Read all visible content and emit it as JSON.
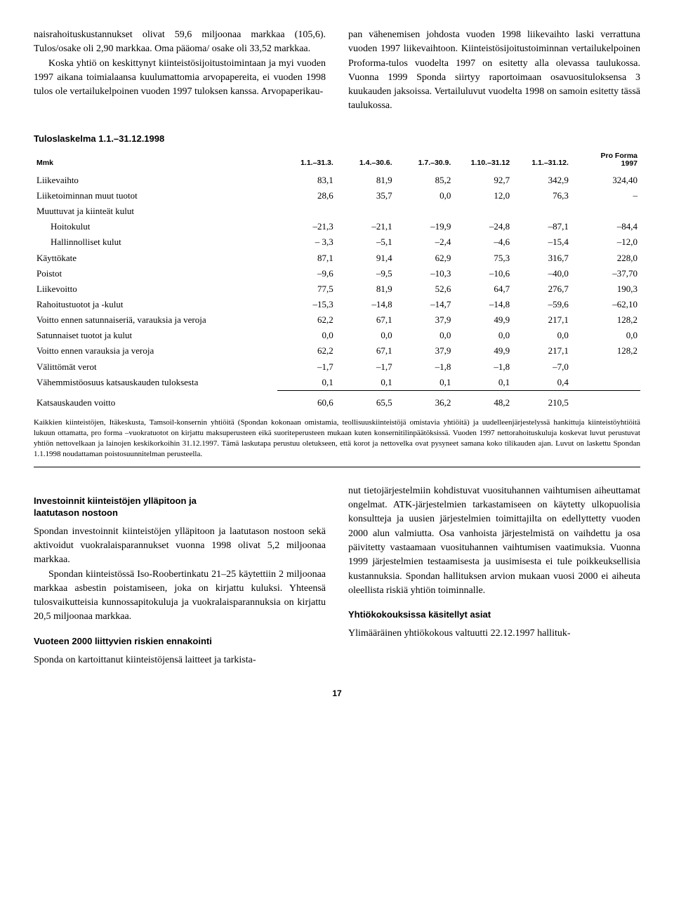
{
  "top_paragraphs": {
    "left_p1": "naisrahoituskustannukset olivat 59,6 miljoonaa markkaa (105,6). Tulos/osake oli 2,90 markkaa. Oma pääoma/ osake oli 33,52 markkaa.",
    "left_p2": "Koska yhtiö on keskittynyt kiinteistösijoitustoimintaan ja myi vuoden 1997 aikana toimialaansa kuulumattomia arvopapereita, ei vuoden 1998 tulos ole vertailukelpoinen vuoden 1997 tuloksen kanssa. Arvopaperikau-",
    "right_p1": "pan vähenemisen johdosta vuoden 1998 liikevaihto laski verrattuna vuoden 1997 liikevaihtoon. Kiinteistösijoitustoiminnan vertailukelpoinen Proforma-tulos vuodelta 1997 on esitetty alla olevassa taulukossa. Vuonna 1999 Sponda siirtyy raportoimaan osavuosituloksensa 3 kuukauden jaksoissa. Vertailuluvut vuodelta 1998 on samoin esitetty tässä taulukossa."
  },
  "table": {
    "title": "Tuloslaskelma 1.1.–31.12.1998",
    "header_unit": "Mmk",
    "columns": [
      "1.1.–31.3.",
      "1.4.–30.6.",
      "1.7.–30.9.",
      "1.10.–31.12",
      "1.1.–31.12."
    ],
    "last_col_top": "Pro Forma",
    "last_col_bot": "1997",
    "rows": [
      {
        "label": "Liikevaihto",
        "vals": [
          "83,1",
          "81,9",
          "85,2",
          "92,7",
          "342,9",
          "324,40"
        ]
      },
      {
        "label": "Liiketoiminnan muut tuotot",
        "vals": [
          "28,6",
          "35,7",
          "0,0",
          "12,0",
          "76,3",
          "–"
        ]
      },
      {
        "label": "Muuttuvat ja kiinteät kulut",
        "vals": [
          "",
          "",
          "",
          "",
          "",
          ""
        ]
      },
      {
        "label": "Hoitokulut",
        "indent": true,
        "vals": [
          "–21,3",
          "–21,1",
          "–19,9",
          "–24,8",
          "–87,1",
          "–84,4"
        ]
      },
      {
        "label": "Hallinnolliset kulut",
        "indent": true,
        "vals": [
          "– 3,3",
          "–5,1",
          "–2,4",
          "–4,6",
          "–15,4",
          "–12,0"
        ]
      },
      {
        "label": "Käyttökate",
        "vals": [
          "87,1",
          "91,4",
          "62,9",
          "75,3",
          "316,7",
          "228,0"
        ]
      },
      {
        "label": "Poistot",
        "vals": [
          "–9,6",
          "–9,5",
          "–10,3",
          "–10,6",
          "–40,0",
          "–37,70"
        ]
      },
      {
        "label": "Liikevoitto",
        "vals": [
          "77,5",
          "81,9",
          "52,6",
          "64,7",
          "276,7",
          "190,3"
        ]
      },
      {
        "label": "Rahoitustuotot ja -kulut",
        "vals": [
          "–15,3",
          "–14,8",
          "–14,7",
          "–14,8",
          "–59,6",
          "–62,10"
        ]
      },
      {
        "label": "Voitto ennen satunnaiseriä, varauksia ja veroja",
        "vals": [
          "62,2",
          "67,1",
          "37,9",
          "49,9",
          "217,1",
          "128,2"
        ]
      },
      {
        "label": "Satunnaiset tuotot ja kulut",
        "vals": [
          "0,0",
          "0,0",
          "0,0",
          "0,0",
          "0,0",
          "0,0"
        ]
      },
      {
        "label": "Voitto ennen varauksia ja veroja",
        "vals": [
          "62,2",
          "67,1",
          "37,9",
          "49,9",
          "217,1",
          "128,2"
        ]
      },
      {
        "label": "Välittömät verot",
        "vals": [
          "–1,7",
          "–1,7",
          "–1,8",
          "–1,8",
          "–7,0",
          ""
        ]
      },
      {
        "label": "Vähemmistöosuus katsauskauden tuloksesta",
        "vals": [
          "0,1",
          "0,1",
          "0,1",
          "0,1",
          "0,4",
          ""
        ]
      }
    ],
    "final_row": {
      "label": "Katsauskauden voitto",
      "vals": [
        "60,6",
        "65,5",
        "36,2",
        "48,2",
        "210,5",
        ""
      ]
    },
    "footnote": "Kaikkien kiinteistöjen, Itäkeskusta, Tamsoil-konsernin yhtiöitä (Spondan kokonaan omistamia, teollisuuskiinteistöjä omistavia yhtiöitä) ja uudelleenjärjestelyssä hankittuja kiinteistöyhtiöitä lukuun ottamatta, pro forma –vuokratuotot on kirjattu maksuperusteen eikä suoriteperusteen mukaan kuten konsernitilinpäätöksissä. Vuoden 1997 nettorahoituskuluja koskevat luvut perustuvat yhtiön nettovelkaan ja lainojen keskikorkoihin 31.12.1997. Tämä laskutapa perustuu oletukseen, että korot ja nettovelka ovat pysyneet samana koko tilikauden ajan. Luvut on laskettu Spondan 1.1.1998 noudattaman poistosuunnitelman perusteella."
  },
  "lower": {
    "h_inv_1": "Investoinnit kiinteistöjen ylläpitoon ja",
    "h_inv_2": "laatutason nostoon",
    "inv_p1": "Spondan investoinnit kiinteistöjen ylläpitoon ja laatutason nostoon sekä aktivoidut vuokralaisparannukset vuonna 1998 olivat 5,2 miljoonaa markkaa.",
    "inv_p2": "Spondan kiinteistössä Iso-Roobertinkatu 21–25 käytettiin 2 miljoonaa markkaa asbestin poistamiseen, joka on kirjattu kuluksi. Yhteensä tulosvaikutteisia kunnossapitokuluja ja vuokralaisparannuksia on kirjattu 20,5 miljoonaa markkaa.",
    "h_2000": "Vuoteen 2000 liittyvien riskien ennakointi",
    "p_2000_a": "Sponda on kartoittanut kiinteistöjensä laitteet ja tarkista-",
    "p_2000_b": "nut tietojärjestelmiin kohdistuvat vuosituhannen vaihtumisen aiheuttamat ongelmat. ATK-järjestelmien tarkastamiseen on käytetty ulkopuolisia konsultteja ja uusien järjestelmien toimittajilta on edellyttetty vuoden 2000 alun valmiutta. Osa vanhoista järjestelmistä on vaihdettu ja osa päivitetty vastaamaan vuosituhannen vaihtumisen vaatimuksia. Vuonna 1999 järjestelmien testaamisesta ja uusimisesta ei tule poikkeuksellisia kustannuksia. Spondan hallituksen arvion mukaan vuosi 2000 ei aiheuta oleellista riskiä yhtiön toiminnalle.",
    "h_yk": "Yhtiökokouksissa käsitellyt asiat",
    "p_yk": "Ylimääräinen yhtiökokous valtuutti 22.12.1997 hallituk-"
  },
  "page_number": "17",
  "colors": {
    "text": "#000000",
    "background": "#ffffff",
    "rule": "#000000"
  }
}
